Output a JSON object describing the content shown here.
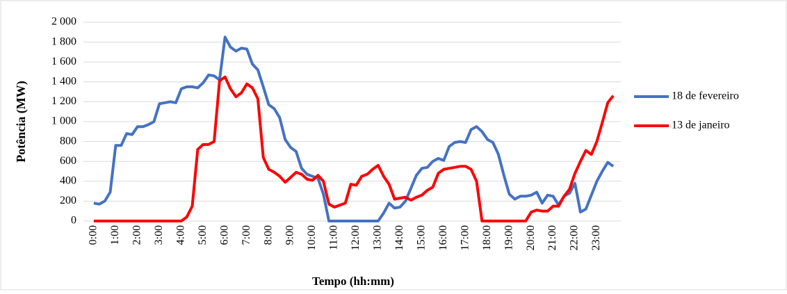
{
  "chart_data": {
    "type": "line",
    "x_label": "Tempo (hh:mm)",
    "y_label": "Potência (MW)",
    "categories": [
      "0:00",
      null,
      null,
      null,
      "1:00",
      null,
      null,
      null,
      "2:00",
      null,
      null,
      null,
      "3:00",
      null,
      null,
      null,
      "4:00",
      null,
      null,
      null,
      "5:00",
      null,
      null,
      null,
      "6:00",
      null,
      null,
      null,
      "7:00",
      null,
      null,
      null,
      "8:00",
      null,
      null,
      null,
      "9:00",
      null,
      null,
      null,
      "10:00",
      null,
      null,
      null,
      "11:00",
      null,
      null,
      null,
      "12:00",
      null,
      null,
      null,
      "13:00",
      null,
      null,
      null,
      "14:00",
      null,
      null,
      null,
      "15:00",
      null,
      null,
      null,
      "16:00",
      null,
      null,
      null,
      "17:00",
      null,
      null,
      null,
      "18:00",
      null,
      null,
      null,
      "19:00",
      null,
      null,
      null,
      "20:00",
      null,
      null,
      null,
      "21:00",
      null,
      null,
      null,
      "22:00",
      null,
      null,
      null,
      "23:00",
      null,
      null,
      null
    ],
    "series": [
      {
        "name": "18 de fevereiro",
        "color": "#4472c4",
        "values": [
          180,
          170,
          200,
          290,
          760,
          760,
          880,
          870,
          950,
          950,
          970,
          1000,
          1180,
          1190,
          1200,
          1190,
          1330,
          1350,
          1350,
          1340,
          1390,
          1470,
          1460,
          1420,
          1850,
          1750,
          1710,
          1740,
          1730,
          1580,
          1520,
          1350,
          1170,
          1130,
          1040,
          820,
          740,
          700,
          530,
          470,
          450,
          430,
          270,
          0,
          0,
          0,
          0,
          0,
          0,
          0,
          0,
          0,
          0,
          80,
          180,
          130,
          140,
          200,
          330,
          460,
          530,
          540,
          600,
          630,
          610,
          750,
          790,
          800,
          790,
          920,
          950,
          900,
          820,
          790,
          670,
          460,
          270,
          220,
          250,
          250,
          260,
          290,
          180,
          260,
          250,
          160,
          250,
          280,
          380,
          90,
          120,
          260,
          400,
          500,
          590,
          550
        ]
      },
      {
        "name": "13 de janeiro",
        "color": "#ff0000",
        "values": [
          0,
          0,
          0,
          0,
          0,
          0,
          0,
          0,
          0,
          0,
          0,
          0,
          0,
          0,
          0,
          0,
          0,
          40,
          150,
          720,
          770,
          770,
          800,
          1410,
          1450,
          1330,
          1250,
          1290,
          1380,
          1340,
          1230,
          640,
          520,
          490,
          450,
          390,
          440,
          490,
          470,
          420,
          410,
          460,
          400,
          170,
          140,
          160,
          180,
          370,
          360,
          450,
          470,
          520,
          560,
          450,
          370,
          220,
          230,
          240,
          210,
          240,
          260,
          310,
          340,
          480,
          520,
          530,
          540,
          550,
          550,
          520,
          400,
          0,
          0,
          0,
          0,
          0,
          0,
          0,
          0,
          0,
          90,
          110,
          100,
          100,
          150,
          150,
          250,
          320,
          480,
          600,
          710,
          670,
          800,
          990,
          1190,
          1260
        ]
      }
    ],
    "ylim": [
      0,
      2000
    ],
    "yticks": [
      0,
      200,
      400,
      600,
      800,
      {
        "value": 1000,
        "label": "1 000"
      },
      {
        "value": 1200,
        "label": "1 200"
      },
      {
        "value": 1400,
        "label": "1 400"
      },
      {
        "value": 1600,
        "label": "1 600"
      },
      {
        "value": 1800,
        "label": "1 800"
      },
      {
        "value": 2000,
        "label": "2 000"
      }
    ],
    "grid": true,
    "legend": "right"
  }
}
